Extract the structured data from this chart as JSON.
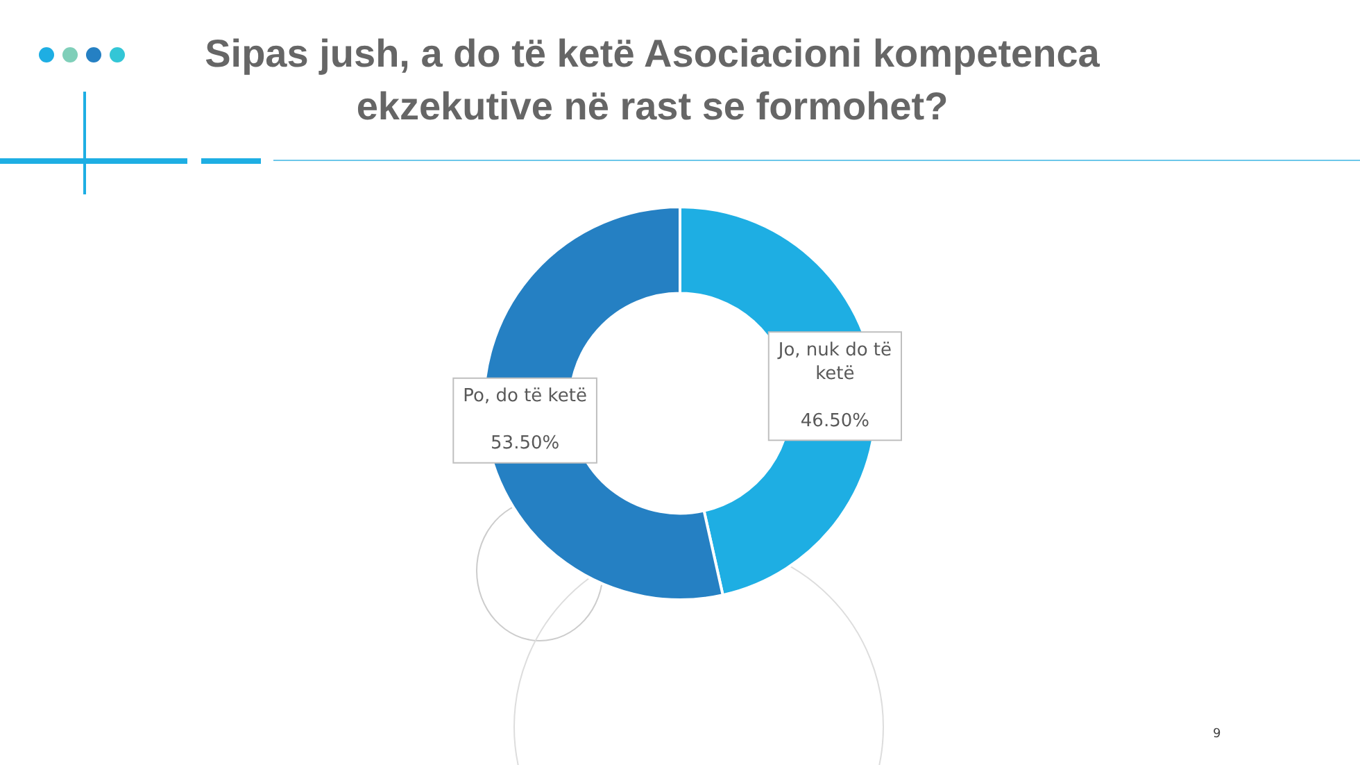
{
  "chart_data": {
    "type": "donut",
    "title": "Sipas jush, a do të ketë Asociacioni kompetenca ekzekutive në rast se formohet?",
    "categories": [
      "Jo, nuk do të ketë",
      "Po, do të ketë"
    ],
    "values": [
      46.5,
      53.5
    ],
    "colors": [
      "#1eaee3",
      "#2580c3"
    ],
    "value_labels": [
      "46.50%",
      "53.50%"
    ],
    "legend": false,
    "annotations": [
      "9"
    ]
  }
}
